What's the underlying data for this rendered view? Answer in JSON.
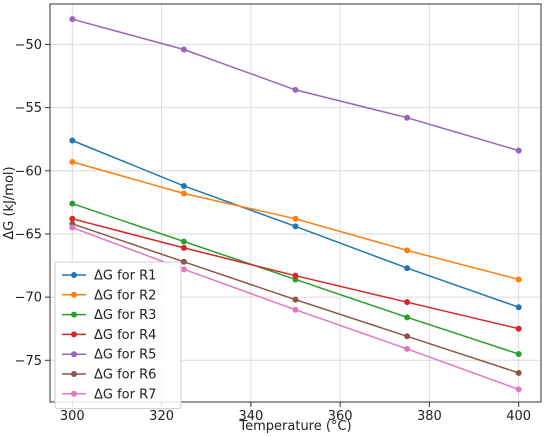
{
  "chart_data": {
    "type": "line",
    "title": "",
    "xlabel": "Temperature (°C)",
    "ylabel": "ΔG (kJ/mol)",
    "x": [
      300,
      325,
      350,
      375,
      400
    ],
    "xlim": [
      295,
      405
    ],
    "ylim": [
      -78.3,
      -46.8
    ],
    "xticks": [
      300,
      320,
      340,
      360,
      380,
      400
    ],
    "yticks": [
      -75,
      -70,
      -65,
      -60,
      -55,
      -50
    ],
    "grid": true,
    "legend_position": "lower-left",
    "series": [
      {
        "name": "ΔG for R1",
        "color": "#1f77b4",
        "values": [
          -57.6,
          -61.2,
          -64.4,
          -67.7,
          -70.8
        ]
      },
      {
        "name": "ΔG for R2",
        "color": "#ff7f0e",
        "values": [
          -59.3,
          -61.8,
          -63.8,
          -66.3,
          -68.6
        ]
      },
      {
        "name": "ΔG for R3",
        "color": "#2ca02c",
        "values": [
          -62.6,
          -65.6,
          -68.6,
          -71.6,
          -74.5
        ]
      },
      {
        "name": "ΔG for R4",
        "color": "#d62728",
        "values": [
          -63.8,
          -66.1,
          -68.3,
          -70.4,
          -72.5
        ]
      },
      {
        "name": "ΔG for R5",
        "color": "#9467bd",
        "values": [
          -48.0,
          -50.4,
          -53.6,
          -55.8,
          -58.4
        ]
      },
      {
        "name": "ΔG for R6",
        "color": "#8c564b",
        "values": [
          -64.2,
          -67.2,
          -70.2,
          -73.1,
          -76.0
        ]
      },
      {
        "name": "ΔG for R7",
        "color": "#e377c2",
        "values": [
          -64.5,
          -67.8,
          -71.0,
          -74.1,
          -77.3
        ]
      }
    ]
  }
}
